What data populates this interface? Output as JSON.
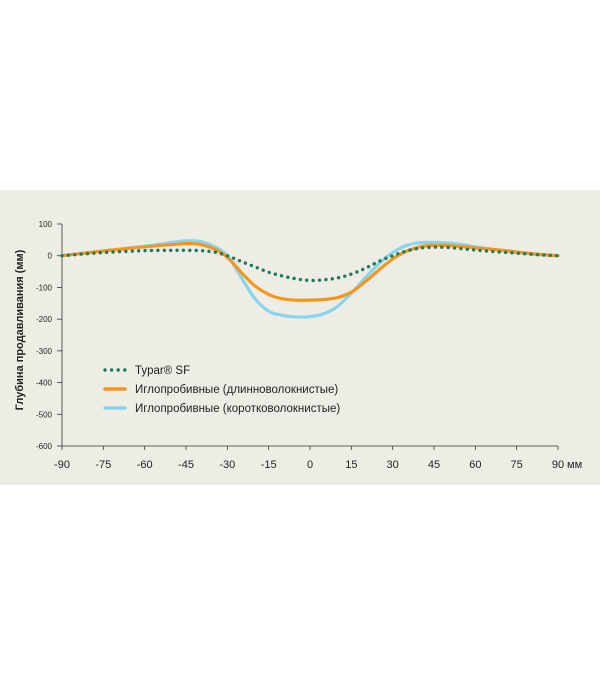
{
  "chart_data": {
    "type": "line",
    "title": "",
    "xlabel": "",
    "x_unit": "мм",
    "ylabel": "Глубина продавливания (мм)",
    "xlim": [
      -90,
      90
    ],
    "ylim": [
      -600,
      100
    ],
    "x_ticks": [
      -90,
      -75,
      -60,
      -45,
      -30,
      -15,
      0,
      15,
      30,
      45,
      60,
      75,
      90
    ],
    "y_ticks": [
      100,
      0,
      -100,
      -200,
      -300,
      -400,
      -500,
      -600
    ],
    "series": [
      {
        "name": "Typar® SF",
        "style": "dotted",
        "color": "#1a7a5e",
        "x": [
          -90,
          -75,
          -60,
          -50,
          -45,
          -40,
          -35,
          -30,
          -25,
          -20,
          -15,
          -10,
          -5,
          0,
          5,
          10,
          15,
          20,
          25,
          30,
          35,
          40,
          45,
          50,
          55,
          60,
          65,
          70,
          75,
          80,
          85,
          90
        ],
        "y": [
          0,
          10,
          16,
          17,
          17,
          16,
          12,
          0,
          -18,
          -35,
          -52,
          -64,
          -73,
          -78,
          -76,
          -70,
          -58,
          -40,
          -18,
          0,
          15,
          24,
          27,
          26,
          22,
          18,
          14,
          11,
          8,
          5,
          2,
          0
        ]
      },
      {
        "name": "Иглопробивные (длинноволокнистые)",
        "style": "solid",
        "color": "#f5961f",
        "x": [
          -90,
          -75,
          -60,
          -50,
          -45,
          -40,
          -35,
          -30,
          -25,
          -20,
          -15,
          -10,
          -5,
          0,
          5,
          10,
          15,
          20,
          25,
          30,
          35,
          40,
          45,
          50,
          55,
          60,
          65,
          70,
          75,
          80,
          85,
          90
        ],
        "y": [
          0,
          15,
          28,
          35,
          38,
          36,
          22,
          -5,
          -52,
          -95,
          -122,
          -136,
          -140,
          -140,
          -138,
          -132,
          -115,
          -82,
          -45,
          -10,
          14,
          28,
          33,
          32,
          29,
          25,
          21,
          17,
          12,
          7,
          3,
          0
        ]
      },
      {
        "name": "Иглопробивные (коротковолокнистые)",
        "style": "solid",
        "color": "#8ad5ec",
        "x": [
          -90,
          -75,
          -60,
          -50,
          -45,
          -40,
          -35,
          -30,
          -25,
          -20,
          -15,
          -10,
          -5,
          0,
          5,
          10,
          15,
          20,
          25,
          30,
          35,
          40,
          45,
          50,
          55,
          60,
          65,
          70,
          75,
          80,
          85,
          90
        ],
        "y": [
          0,
          15,
          30,
          42,
          47,
          45,
          30,
          0,
          -68,
          -135,
          -175,
          -188,
          -193,
          -192,
          -183,
          -160,
          -118,
          -70,
          -25,
          10,
          32,
          41,
          42,
          40,
          35,
          28,
          22,
          16,
          10,
          6,
          2,
          0
        ]
      }
    ]
  }
}
